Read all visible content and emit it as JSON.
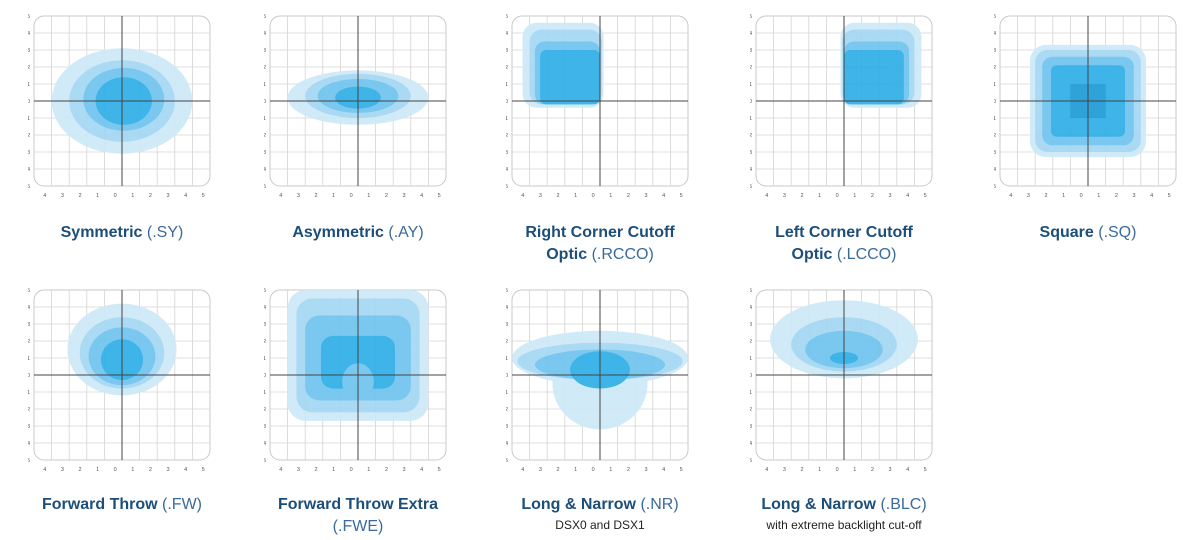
{
  "axis_labels": [
    "5",
    "4",
    "3",
    "2",
    "1",
    "0",
    "1",
    "2",
    "3",
    "4",
    "5"
  ],
  "colors": {
    "light": "#cde9f8",
    "mid1": "#a3d7f3",
    "mid2": "#6fc4ee",
    "dark": "#2eaee6",
    "core": "#1e9bd6",
    "grid": "#d4d4d4",
    "frame": "#c8c8c8",
    "axis": "#444444"
  },
  "patterns": [
    {
      "name": "Symmetric",
      "code": "(.SY)",
      "sub": ""
    },
    {
      "name": "Asymmetric",
      "code": "(.AY)",
      "sub": ""
    },
    {
      "name": "Right Corner Cutoff",
      "name2": "Optic",
      "code": "(.RCCO)",
      "sub": ""
    },
    {
      "name": "Left Corner Cutoff",
      "name2": "Optic",
      "code": "(.LCCO)",
      "sub": ""
    },
    {
      "name": "Square",
      "code": "(.SQ)",
      "sub": ""
    },
    {
      "name": "Forward Throw",
      "code": "(.FW)",
      "sub": ""
    },
    {
      "name": "Forward Throw Extra",
      "code": "(.FWE)",
      "sub": ""
    },
    {
      "name": "Long & Narrow",
      "code": "(.NR)",
      "sub": "DSX0 and DSX1"
    },
    {
      "name": "Long & Narrow",
      "code": "(.BLC)",
      "sub": "with extreme backlight cut-off"
    }
  ]
}
